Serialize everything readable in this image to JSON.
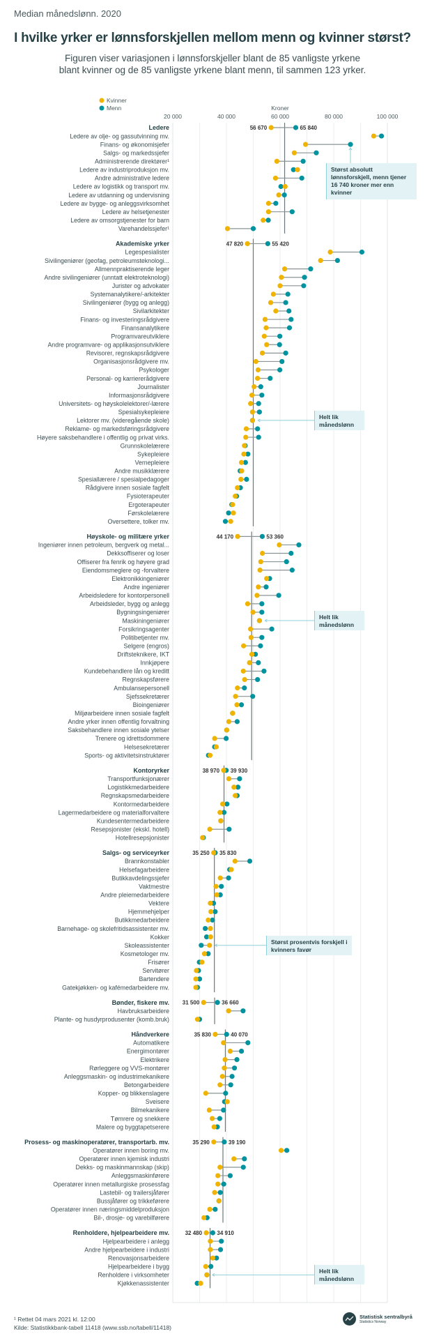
{
  "header": {
    "supertitle": "Median månedslønn. 2020",
    "title": "I hvilke yrker er lønnsforskjellen mellom menn og kvinner størst?",
    "subtitle_line1": "Figuren viser variasjonen i lønnsforskjeller blant de 85 vanligste yrkene",
    "subtitle_line2": "blant kvinner og de 85 vanligste yrkene blant menn, til sammen 123 yrker."
  },
  "footer": {
    "note": "¹ Rettet 04 mars 2021 kl. 12:00",
    "source": "Kilde: Statistikkbank-tabell 11418 (www.ssb.no/tabell/11418)",
    "logo_name": "Statistisk sentralbyrå",
    "logo_sub": "Statistics Norway"
  },
  "colors": {
    "kvinner": "#f0b400",
    "menn": "#00939f",
    "annotation_bg": "#e3f2f5",
    "text": "#274247"
  },
  "chart_data": {
    "type": "dot-plot",
    "xlabel": "Kroner",
    "xlim": [
      20000,
      100000
    ],
    "xticks": [
      "20 000",
      "40 000",
      "60 000",
      "80 000",
      "100 000"
    ],
    "xtick_values": [
      20000,
      40000,
      60000,
      80000,
      100000
    ],
    "grid": true,
    "legend": {
      "placement": "top-left",
      "entries": [
        "Kvinner",
        "Menn"
      ]
    },
    "series_keys": [
      "kvinner",
      "menn"
    ],
    "groups": [
      {
        "name": "Ledere",
        "kvinner": 56670,
        "menn": 65840,
        "kvinner_label": "56 670",
        "menn_label": "65 840",
        "median_line": 61700,
        "items": [
          {
            "label": "Ledere av olje- og gassutvinning mv.",
            "kvinner": 94900,
            "menn": 97800
          },
          {
            "label": "Finans- og økonomisjefer",
            "kvinner": 69500,
            "menn": 86240
          },
          {
            "label": "Salgs- og markedssjefer",
            "kvinner": 65300,
            "menn": 73500
          },
          {
            "label": "Administrerende direktører¹",
            "kvinner": 58800,
            "menn": 68600
          },
          {
            "label": "Ledere av industriproduksjon mv.",
            "kvinner": 66500,
            "menn": 65000
          },
          {
            "label": "Andre administrative ledere",
            "kvinner": 58300,
            "menn": 68100
          },
          {
            "label": "Ledere av logistikk og transport mv.",
            "kvinner": 61900,
            "menn": 60300
          },
          {
            "label": "Ledere av utdanning og undervisning",
            "kvinner": 59500,
            "menn": 61600
          },
          {
            "label": "Ledere av bygge- og anleggsvirksomhet",
            "kvinner": 55700,
            "menn": 58400
          },
          {
            "label": "Ledere av helsetjenester",
            "kvinner": 55700,
            "menn": 64500
          },
          {
            "label": "Ledere av omsorgstjenester for barn",
            "kvinner": 53700,
            "menn": 55600
          },
          {
            "label": "Varehandelssjefer¹",
            "kvinner": 40400,
            "menn": 50000
          }
        ]
      },
      {
        "name": "Akademiske yrker",
        "kvinner": 47820,
        "menn": 55420,
        "kvinner_label": "47 820",
        "menn_label": "55 420",
        "median_line": 50000,
        "items": [
          {
            "label": "Legespesialister",
            "kvinner": 78700,
            "menn": 90500
          },
          {
            "label": "Sivilingeniører (geofag, petroleumsteknologi...",
            "kvinner": 75100,
            "menn": 81400
          },
          {
            "label": "Allmennpraktiserende leger",
            "kvinner": 61700,
            "menn": 71400
          },
          {
            "label": "Andre sivilingeniører (unntatt elektroteknologi)",
            "kvinner": 60500,
            "menn": 69100
          },
          {
            "label": "Jurister og advokater",
            "kvinner": 60000,
            "menn": 68800
          },
          {
            "label": "Systemanalytikere/-arkitekter",
            "kvinner": 57500,
            "menn": 62900
          },
          {
            "label": "Sivilingeniører (bygg og anlegg)",
            "kvinner": 56500,
            "menn": 62100
          },
          {
            "label": "Sivilarkitekter",
            "kvinner": 58400,
            "menn": 63300
          },
          {
            "label": "Finans- og investeringsrådgivere",
            "kvinner": 54400,
            "menn": 64100
          },
          {
            "label": "Finansanalytikere",
            "kvinner": 54800,
            "menn": 63500
          },
          {
            "label": "Programvareutviklere",
            "kvinner": 54100,
            "menn": 59900
          },
          {
            "label": "Andre programvare- og applikasjonsutviklere",
            "kvinner": 55000,
            "menn": 59800
          },
          {
            "label": "Revisorer, regnskapsrådgivere",
            "kvinner": 53400,
            "menn": 62100
          },
          {
            "label": "Organisasjonsrådgivere mv.",
            "kvinner": 51000,
            "menn": 60700
          },
          {
            "label": "Psykologer",
            "kvinner": 51800,
            "menn": 59900
          },
          {
            "label": "Personal- og karriererådgivere",
            "kvinner": 51600,
            "menn": 56300
          },
          {
            "label": "Journalister",
            "kvinner": 50300,
            "menn": 52800
          },
          {
            "label": "Informasjonsrådgivere",
            "kvinner": 49500,
            "menn": 53200
          },
          {
            "label": "Universitets- og høyskolelektorer/-lærere",
            "kvinner": 49000,
            "menn": 52000
          },
          {
            "label": "Spesialsykepleiere",
            "kvinner": 49700,
            "menn": 52300
          },
          {
            "label": "Lektorer mv. (videregående skole)",
            "kvinner": 49700,
            "menn": 49700
          },
          {
            "label": "Reklame- og markedsføringsrådgivere",
            "kvinner": 47400,
            "menn": 51600
          },
          {
            "label": "Høyere saksbehandlere i offentlig og privat virks.",
            "kvinner": 47200,
            "menn": 52000
          },
          {
            "label": "Grunnskolelærere",
            "kvinner": 46700,
            "menn": 47000
          },
          {
            "label": "Sykepleiere",
            "kvinner": 46500,
            "menn": 48000
          },
          {
            "label": "Vernepleiere",
            "kvinner": 45600,
            "menn": 47100
          },
          {
            "label": "Andre musikklærere",
            "kvinner": 45700,
            "menn": 45100
          },
          {
            "label": "Spesiallærere / spesialpedagoger",
            "kvinner": 45400,
            "menn": 47500
          },
          {
            "label": "Rådgivere innen sosiale fagfelt",
            "kvinner": 44100,
            "menn": 45200
          },
          {
            "label": "Fysioterapeuter",
            "kvinner": 43300,
            "menn": 43800
          },
          {
            "label": "Ergoterapeuter",
            "kvinner": 42300,
            "menn": 42000
          },
          {
            "label": "Førskolelærere",
            "kvinner": 42600,
            "menn": 40800
          },
          {
            "label": "Oversettere, tolker mv.",
            "kvinner": 41600,
            "menn": 39600
          }
        ]
      },
      {
        "name": "Høyskole- og militære yrker",
        "kvinner": 44170,
        "menn": 53360,
        "kvinner_label": "44 170",
        "menn_label": "53 360",
        "median_line": 49400,
        "items": [
          {
            "label": "Ingeniører innen petroleum, bergverk og metal...",
            "kvinner": 59700,
            "menn": 67000
          },
          {
            "label": "Dekksoffiserer og loser",
            "kvinner": 53400,
            "menn": 64100
          },
          {
            "label": "Offiserer fra fenrik og høyere grad",
            "kvinner": 52800,
            "menn": 62400
          },
          {
            "label": "Eiendomsmeglere og -forvaltere",
            "kvinner": 52500,
            "menn": 64500
          },
          {
            "label": "Elektronikkingeniører",
            "kvinner": 55000,
            "menn": 56100
          },
          {
            "label": "Andre ingeniører",
            "kvinner": 51900,
            "menn": 54800
          },
          {
            "label": "Arbeidsledere for kontorpersonell",
            "kvinner": 51400,
            "menn": 59500
          },
          {
            "label": "Arbeidsleder, bygg og anlegg",
            "kvinner": 47900,
            "menn": 53200
          },
          {
            "label": "Bygningsingeniører",
            "kvinner": 49900,
            "menn": 53200
          },
          {
            "label": "Maskiningeniører",
            "kvinner": 52300,
            "menn": 52300
          },
          {
            "label": "Forsikringsagenter",
            "kvinner": 49000,
            "menn": 56900
          },
          {
            "label": "Politibetjenter mv.",
            "kvinner": 49200,
            "menn": 53200
          },
          {
            "label": "Selgere (engros)",
            "kvinner": 46400,
            "menn": 52700
          },
          {
            "label": "Driftsteknikere, IKT",
            "kvinner": 49500,
            "menn": 50800
          },
          {
            "label": "Innkjøpere",
            "kvinner": 48600,
            "menn": 51900
          },
          {
            "label": "Kundebehandlere lån og kreditt",
            "kvinner": 46300,
            "menn": 54000
          },
          {
            "label": "Regnskapsførere",
            "kvinner": 46800,
            "menn": 51600
          },
          {
            "label": "Ambulansepersonell",
            "kvinner": 44100,
            "menn": 46700
          },
          {
            "label": "Sjefssekretærer",
            "kvinner": 43400,
            "menn": 49800
          },
          {
            "label": "Bioingeniører",
            "kvinner": 43900,
            "menn": 45600
          },
          {
            "label": "Miljøarbeidere innen sosiale fagfelt",
            "kvinner": 42300,
            "menn": 42300
          },
          {
            "label": "Andre yrker innen offentlig forvaltning",
            "kvinner": 40900,
            "menn": 44000
          },
          {
            "label": "Saksbehandlere innen sosiale ytelser",
            "kvinner": 40100,
            "menn": 40100
          },
          {
            "label": "Trenere og idrettsdommere",
            "kvinner": 35600,
            "menn": 39900
          },
          {
            "label": "Helsesekretærer",
            "kvinner": 36200,
            "menn": 35600
          },
          {
            "label": "Sports- og aktivitetsinstruktører",
            "kvinner": 33900,
            "menn": 33300
          }
        ]
      },
      {
        "name": "Kontoryrker",
        "kvinner": 38970,
        "menn": 39930,
        "kvinner_label": "38 970",
        "menn_label": "39 930",
        "median_line": 39100,
        "items": [
          {
            "label": "Transportfunksjonærer",
            "kvinner": 40900,
            "menn": 44900
          },
          {
            "label": "Logistikkmedarbeidere",
            "kvinner": 42800,
            "menn": 44300
          },
          {
            "label": "Regnskapsmedarbeidere",
            "kvinner": 43300,
            "menn": 44000
          },
          {
            "label": "Kontormedarbeidere",
            "kvinner": 38600,
            "menn": 40200
          },
          {
            "label": "Lagermedarbeidere og materialforvaltere",
            "kvinner": 37600,
            "menn": 39100
          },
          {
            "label": "Kundesentermedarbeidere",
            "kvinner": 37900,
            "menn": 37900
          },
          {
            "label": "Resepsjonister (ekskl. hotell)",
            "kvinner": 33800,
            "menn": 41000
          },
          {
            "label": "Hotellresepsjonister",
            "kvinner": 31100,
            "menn": 31400
          }
        ]
      },
      {
        "name": "Salgs- og serviceyrker",
        "kvinner": 35250,
        "menn": 35830,
        "kvinner_label": "35 250",
        "menn_label": "35 830",
        "median_line": 35500,
        "items": [
          {
            "label": "Brannkonstabler",
            "kvinner": 43200,
            "menn": 48700
          },
          {
            "label": "Helsefagarbeidere",
            "kvinner": 41800,
            "menn": 41200
          },
          {
            "label": "Butikkavdelingssjefer",
            "kvinner": 37700,
            "menn": 40800
          },
          {
            "label": "Vaktmestre",
            "kvinner": 36100,
            "menn": 38100
          },
          {
            "label": "Andre pleiemedarbeidere",
            "kvinner": 36400,
            "menn": 37700
          },
          {
            "label": "Vektere",
            "kvinner": 34000,
            "menn": 35200
          },
          {
            "label": "Hjemmehjelper",
            "kvinner": 34200,
            "menn": 35800
          },
          {
            "label": "Butikkmedarbeidere",
            "kvinner": 33200,
            "menn": 34800
          },
          {
            "label": "Barnehage- og skolefritidsassistenter mv.",
            "kvinner": 34000,
            "menn": 32100
          },
          {
            "label": "Kokker",
            "kvinner": 34100,
            "menn": 32600
          },
          {
            "label": "Skoleassistenter",
            "kvinner": 33700,
            "menn": 30600
          },
          {
            "label": "Kosmetologer mv.",
            "kvinner": 31800,
            "menn": 33200
          },
          {
            "label": "Frisører",
            "kvinner": 30900,
            "menn": 29900
          },
          {
            "label": "Servitører",
            "kvinner": 28800,
            "menn": 29600
          },
          {
            "label": "Bartendere",
            "kvinner": 28600,
            "menn": 30000
          },
          {
            "label": "Gatekjøkken- og kafémedarbeidere mv.",
            "kvinner": 28600,
            "menn": 29200
          }
        ]
      },
      {
        "name": "Bønder, fiskere mv.",
        "kvinner": 31500,
        "menn": 36660,
        "kvinner_label": "31 500",
        "menn_label": "36 660",
        "median_line": 35600,
        "items": [
          {
            "label": "Havbruksarbeidere",
            "kvinner": 40800,
            "menn": 46200
          },
          {
            "label": "Plante- og husdyrprodusenter (komb.bruk)",
            "kvinner": 29200,
            "menn": 30000
          }
        ]
      },
      {
        "name": "Håndverkere",
        "kvinner": 35830,
        "menn": 40070,
        "kvinner_label": "35 830",
        "menn_label": "40 070",
        "median_line": 39600,
        "items": [
          {
            "label": "Automatikere",
            "kvinner": 38900,
            "menn": 48000
          },
          {
            "label": "Energimontører",
            "kvinner": 41400,
            "menn": 45600
          },
          {
            "label": "Elektrikere",
            "kvinner": 39500,
            "menn": 43900
          },
          {
            "label": "Rørleggere og VVS-montører",
            "kvinner": 39200,
            "menn": 43000
          },
          {
            "label": "Anleggsmaskin- og industrimekanikere",
            "kvinner": 38500,
            "menn": 42100
          },
          {
            "label": "Betongarbeidere",
            "kvinner": 37600,
            "menn": 41600
          },
          {
            "label": "Kopper- og blikkenslagere",
            "kvinner": 32300,
            "menn": 39700
          },
          {
            "label": "Sveisere",
            "kvinner": 40300,
            "menn": 39300
          },
          {
            "label": "Bilmekanikere",
            "kvinner": 33600,
            "menn": 38900
          },
          {
            "label": "Tømrere og snekkere",
            "kvinner": 34700,
            "menn": 37500
          },
          {
            "label": "Malere og byggtapetserere",
            "kvinner": 35400,
            "menn": 36600
          }
        ]
      },
      {
        "name": "Prosess- og maskinoperatører, transportarb. mv.",
        "kvinner": 35290,
        "menn": 39190,
        "kvinner_label": "35 290",
        "menn_label": "39 190",
        "median_line": 38700,
        "items": [
          {
            "label": "Operatører innen boring mv.",
            "kvinner": 60400,
            "menn": 62500
          },
          {
            "label": "Operatører innen kjemisk industri",
            "kvinner": 42800,
            "menn": 46700
          },
          {
            "label": "Dekks- og maskinmannskap (skip)",
            "kvinner": 37600,
            "menn": 46300
          },
          {
            "label": "Anleggsmaskinførere",
            "kvinner": 36800,
            "menn": 41400
          },
          {
            "label": "Operatører innen metallurgiske prosessfag",
            "kvinner": 36800,
            "menn": 39000
          },
          {
            "label": "Lastebil- og trailersjåfører",
            "kvinner": 35600,
            "menn": 37700
          },
          {
            "label": "Bussjåfører og trikkeførere",
            "kvinner": 37200,
            "menn": 37200
          },
          {
            "label": "Operatører innen næringsmiddelproduksjon",
            "kvinner": 33800,
            "menn": 35800
          },
          {
            "label": "Bil-, drosje- og varebilførere",
            "kvinner": 31600,
            "menn": 32800
          }
        ]
      },
      {
        "name": "Renholdere, hjelpearbeidere mv.",
        "kvinner": 32480,
        "menn": 34910,
        "kvinner_label": "32 480",
        "menn_label": "34 910",
        "median_line": 33900,
        "items": [
          {
            "label": "Hjelpearbeidere i anlegg",
            "kvinner": 34000,
            "menn": 38100
          },
          {
            "label": "Andre hjelpearbeidere i industri",
            "kvinner": 34000,
            "menn": 37800
          },
          {
            "label": "Renovasjonsarbeidere",
            "kvinner": 34900,
            "menn": 36300
          },
          {
            "label": "Hjelpearbeidere i bygg",
            "kvinner": 32300,
            "menn": 34200
          },
          {
            "label": "Renholdere i virksomheter",
            "kvinner": 32700,
            "menn": 32700
          },
          {
            "label": "Kjøkkenassistenter",
            "kvinner": 30400,
            "menn": 29100
          }
        ]
      }
    ],
    "annotations": [
      {
        "target": "Finans- og økonomisjefer",
        "text": "Størst absolutt lønnsforskjell, menn tjener 16 740 kroner mer enn kvinner"
      },
      {
        "target": "Lektorer mv. (videregående skole)",
        "text": "Helt lik månedslønn"
      },
      {
        "target": "Maskiningeniører",
        "text": "Helt lik månedslønn"
      },
      {
        "target": "Skoleassistenter",
        "text": "Størst prosentvis forskjell i kvinners favør"
      },
      {
        "target": "Renholdere i virksomheter",
        "text": "Helt lik månedslønn"
      }
    ]
  }
}
